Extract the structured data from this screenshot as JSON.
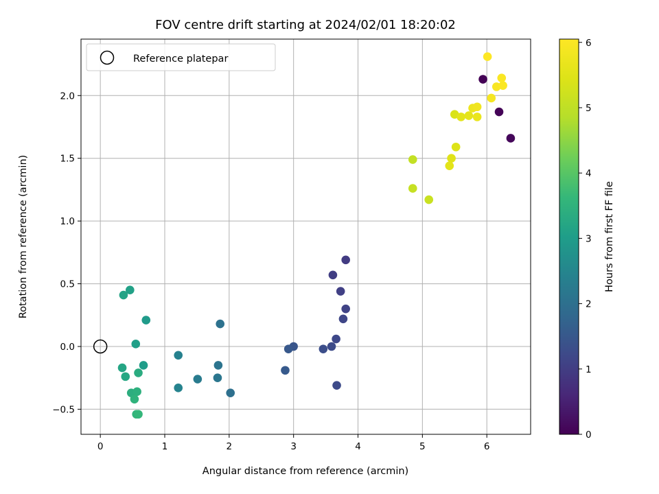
{
  "chart_data": {
    "type": "scatter",
    "title": "FOV centre drift starting at 2024/02/01 18:20:02",
    "xlabel": "Angular distance from reference (arcmin)",
    "ylabel": "Rotation from reference (arcmin)",
    "xlim": [
      -0.3,
      6.68
    ],
    "ylim": [
      -0.7,
      2.45
    ],
    "xticks": [
      0,
      1,
      2,
      3,
      4,
      5,
      6
    ],
    "xtick_labels": [
      "0",
      "1",
      "2",
      "3",
      "4",
      "5",
      "6"
    ],
    "yticks": [
      -0.5,
      0.0,
      0.5,
      1.0,
      1.5,
      2.0
    ],
    "ytick_labels": [
      "−0.5",
      "0.0",
      "0.5",
      "1.0",
      "1.5",
      "2.0"
    ],
    "grid": true,
    "legend": {
      "placement": "top-left",
      "entries": [
        "Reference platepar"
      ]
    },
    "reference_point": {
      "x": 0,
      "y": 0
    },
    "colorbar": {
      "label": "Hours from first FF file",
      "range": [
        0,
        6.05
      ],
      "ticks": [
        0,
        1,
        2,
        3,
        4,
        5,
        6
      ],
      "tick_labels": [
        "0",
        "1",
        "2",
        "3",
        "4",
        "5",
        "6"
      ],
      "colormap": "viridis"
    },
    "points": [
      {
        "x": 5.94,
        "y": 2.13,
        "c": 0.02
      },
      {
        "x": 6.19,
        "y": 1.87,
        "c": 0.05
      },
      {
        "x": 6.37,
        "y": 1.66,
        "c": 0.1
      },
      {
        "x": 3.81,
        "y": 0.69,
        "c": 0.95
      },
      {
        "x": 3.61,
        "y": 0.57,
        "c": 1.0
      },
      {
        "x": 3.73,
        "y": 0.44,
        "c": 1.05
      },
      {
        "x": 3.81,
        "y": 0.3,
        "c": 1.1
      },
      {
        "x": 3.77,
        "y": 0.22,
        "c": 1.15
      },
      {
        "x": 3.66,
        "y": 0.06,
        "c": 1.2
      },
      {
        "x": 3.59,
        "y": 0.0,
        "c": 1.25
      },
      {
        "x": 3.46,
        "y": -0.02,
        "c": 1.3
      },
      {
        "x": 3.67,
        "y": -0.31,
        "c": 1.25
      },
      {
        "x": 3.0,
        "y": 0.0,
        "c": 1.45
      },
      {
        "x": 2.92,
        "y": -0.02,
        "c": 1.5
      },
      {
        "x": 2.87,
        "y": -0.19,
        "c": 1.55
      },
      {
        "x": 2.02,
        "y": -0.37,
        "c": 2.0
      },
      {
        "x": 1.86,
        "y": 0.18,
        "c": 2.05
      },
      {
        "x": 1.83,
        "y": -0.15,
        "c": 2.1
      },
      {
        "x": 1.82,
        "y": -0.25,
        "c": 2.15
      },
      {
        "x": 1.51,
        "y": -0.26,
        "c": 2.25
      },
      {
        "x": 1.21,
        "y": -0.07,
        "c": 2.4
      },
      {
        "x": 1.21,
        "y": -0.33,
        "c": 2.45
      },
      {
        "x": 0.71,
        "y": 0.21,
        "c": 2.95
      },
      {
        "x": 0.67,
        "y": -0.15,
        "c": 3.0
      },
      {
        "x": 0.55,
        "y": 0.02,
        "c": 3.05
      },
      {
        "x": 0.46,
        "y": 0.45,
        "c": 3.1
      },
      {
        "x": 0.36,
        "y": 0.41,
        "c": 3.15
      },
      {
        "x": 0.34,
        "y": -0.17,
        "c": 3.2
      },
      {
        "x": 0.39,
        "y": -0.24,
        "c": 3.25
      },
      {
        "x": 0.59,
        "y": -0.21,
        "c": 3.35
      },
      {
        "x": 0.48,
        "y": -0.37,
        "c": 3.4
      },
      {
        "x": 0.57,
        "y": -0.36,
        "c": 3.45
      },
      {
        "x": 0.53,
        "y": -0.42,
        "c": 3.5
      },
      {
        "x": 0.56,
        "y": -0.54,
        "c": 3.55
      },
      {
        "x": 0.59,
        "y": -0.54,
        "c": 3.6
      },
      {
        "x": 4.85,
        "y": 1.49,
        "c": 5.05
      },
      {
        "x": 4.85,
        "y": 1.26,
        "c": 5.1
      },
      {
        "x": 5.1,
        "y": 1.17,
        "c": 5.15
      },
      {
        "x": 5.52,
        "y": 1.59,
        "c": 5.45
      },
      {
        "x": 5.45,
        "y": 1.5,
        "c": 5.5
      },
      {
        "x": 5.42,
        "y": 1.44,
        "c": 5.55
      },
      {
        "x": 5.5,
        "y": 1.85,
        "c": 5.4
      },
      {
        "x": 5.6,
        "y": 1.83,
        "c": 5.55
      },
      {
        "x": 5.72,
        "y": 1.84,
        "c": 5.6
      },
      {
        "x": 5.85,
        "y": 1.83,
        "c": 5.7
      },
      {
        "x": 5.78,
        "y": 1.9,
        "c": 5.75
      },
      {
        "x": 5.85,
        "y": 1.91,
        "c": 5.8
      },
      {
        "x": 6.07,
        "y": 1.98,
        "c": 5.9
      },
      {
        "x": 6.15,
        "y": 2.07,
        "c": 5.95
      },
      {
        "x": 6.25,
        "y": 2.08,
        "c": 6.0
      },
      {
        "x": 6.23,
        "y": 2.14,
        "c": 6.0
      },
      {
        "x": 6.01,
        "y": 2.31,
        "c": 6.05
      }
    ]
  }
}
